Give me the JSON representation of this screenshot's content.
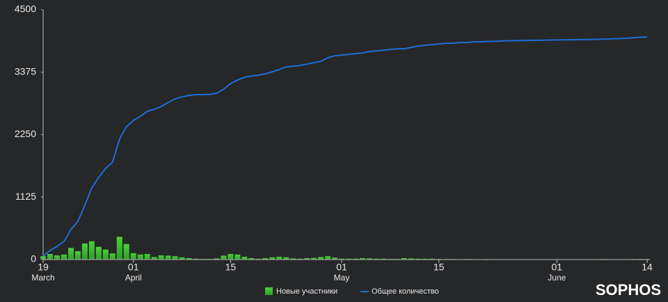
{
  "chart_data": {
    "type": "bar",
    "brand": "SOPHOS",
    "categories": [
      "19",
      null,
      null,
      null,
      null,
      null,
      null,
      null,
      null,
      null,
      null,
      null,
      null,
      "01",
      null,
      null,
      null,
      null,
      null,
      null,
      null,
      null,
      null,
      null,
      null,
      null,
      null,
      "15",
      null,
      null,
      null,
      null,
      null,
      null,
      null,
      null,
      null,
      null,
      null,
      null,
      null,
      null,
      null,
      "01",
      null,
      null,
      null,
      null,
      null,
      null,
      null,
      null,
      null,
      null,
      null,
      null,
      null,
      "15",
      null,
      null,
      null,
      null,
      null,
      null,
      null,
      null,
      null,
      null,
      null,
      null,
      null,
      null,
      null,
      null,
      "01",
      null,
      null,
      null,
      null,
      null,
      null,
      null,
      null,
      null,
      null,
      null,
      null,
      "14"
    ],
    "months": [
      "March",
      null,
      null,
      null,
      null,
      null,
      null,
      null,
      null,
      null,
      null,
      null,
      null,
      "April",
      null,
      null,
      null,
      null,
      null,
      null,
      null,
      null,
      null,
      null,
      null,
      null,
      null,
      null,
      null,
      null,
      null,
      null,
      null,
      null,
      null,
      null,
      null,
      null,
      null,
      null,
      null,
      null,
      null,
      "May",
      null,
      null,
      null,
      null,
      null,
      null,
      null,
      null,
      null,
      null,
      null,
      null,
      null,
      null,
      null,
      null,
      null,
      null,
      null,
      null,
      null,
      null,
      null,
      null,
      null,
      null,
      null,
      null,
      null,
      null,
      "June",
      null,
      null,
      null,
      null,
      null,
      null,
      null,
      null,
      null,
      null,
      null,
      null,
      null
    ],
    "series": [
      {
        "name": "Новые участники",
        "type": "bar",
        "color": "#4cd137",
        "values": [
          60,
          100,
          75,
          90,
          210,
          150,
          290,
          330,
          230,
          180,
          110,
          410,
          280,
          115,
          90,
          100,
          45,
          75,
          70,
          60,
          40,
          25,
          15,
          10,
          10,
          20,
          70,
          100,
          90,
          50,
          25,
          15,
          25,
          40,
          50,
          40,
          20,
          15,
          25,
          30,
          45,
          60,
          35,
          15,
          15,
          15,
          25,
          20,
          15,
          15,
          10,
          10,
          25,
          20,
          15,
          15,
          15,
          10,
          8,
          8,
          6,
          8,
          5,
          6,
          8,
          5,
          6,
          5,
          6,
          5,
          5,
          6,
          5,
          5,
          6,
          5,
          5,
          6,
          5,
          6,
          5,
          8,
          6,
          5,
          6,
          8,
          10,
          8
        ]
      },
      {
        "name": "Общее количество",
        "type": "line",
        "color": "#1c6fd8",
        "values": [
          63,
          163,
          238,
          326,
          539,
          689,
          977,
          1290,
          1479,
          1642,
          1754,
          2168,
          2393,
          2506,
          2581,
          2669,
          2706,
          2756,
          2832,
          2894,
          2932,
          2957,
          2970,
          2970,
          2975,
          2995,
          3070,
          3170,
          3233,
          3283,
          3308,
          3320,
          3346,
          3383,
          3421,
          3471,
          3483,
          3496,
          3521,
          3546,
          3571,
          3634,
          3671,
          3684,
          3696,
          3709,
          3721,
          3746,
          3759,
          3771,
          3784,
          3797,
          3797,
          3822,
          3847,
          3859,
          3872,
          3884,
          3897,
          3897,
          3909,
          3909,
          3922,
          3922,
          3928,
          3932,
          3936,
          3940,
          3944,
          3946,
          3948,
          3950,
          3952,
          3954,
          3956,
          3958,
          3960,
          3962,
          3964,
          3966,
          3968,
          3972,
          3976,
          3980,
          3986,
          3995,
          4005,
          4010
        ]
      }
    ],
    "ylim": [
      0,
      4500
    ],
    "yticks": [
      0,
      1125,
      2250,
      3375,
      4500
    ],
    "grid": false
  }
}
